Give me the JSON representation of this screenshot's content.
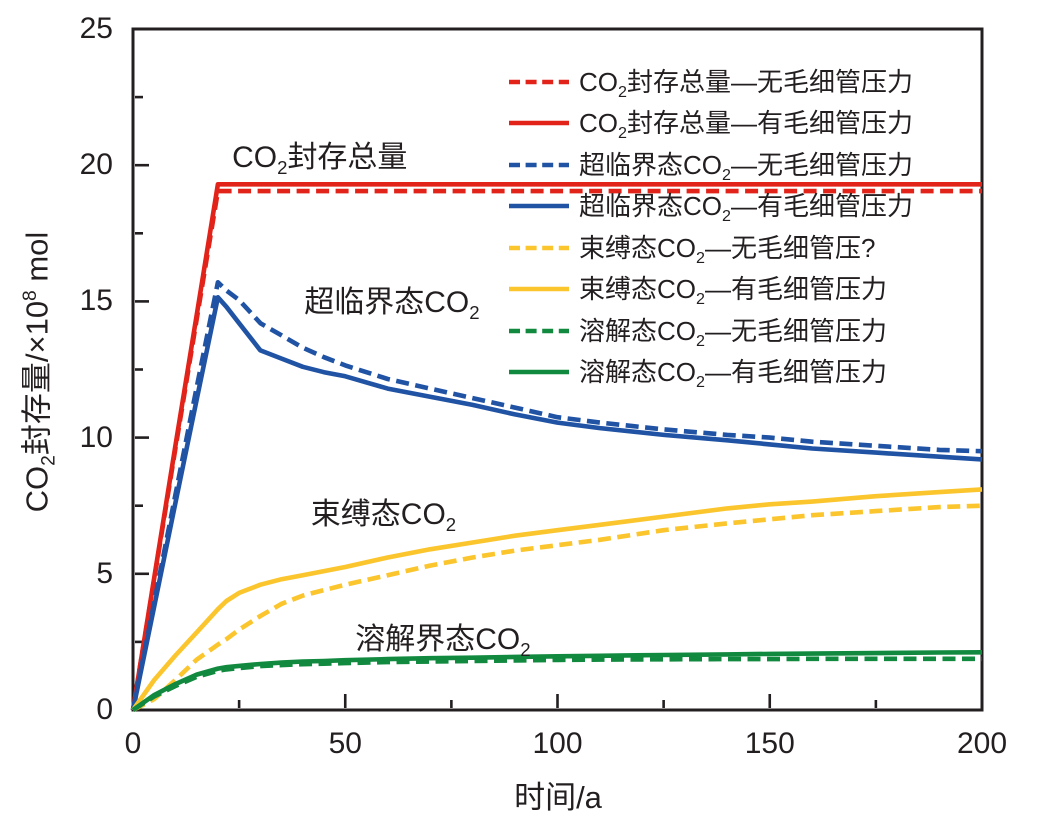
{
  "figure": {
    "background": "#ffffff",
    "text_color": "#231f20",
    "axis_color": "#231f20"
  },
  "chart_data": {
    "type": "line",
    "title": "",
    "xlabel": "时间/a",
    "ylabel": "CO2封存量/×10^8 mol",
    "ylabel_runs": [
      {
        "t": "CO"
      },
      {
        "sub": "2"
      },
      {
        "t": "封存量/×10"
      },
      {
        "sup": "8"
      },
      {
        "t": " mol"
      }
    ],
    "xlim": [
      0,
      200
    ],
    "ylim": [
      0,
      25
    ],
    "grid": false,
    "legend_position": "upper-right-inside",
    "x_major_ticks": [
      0,
      50,
      100,
      150,
      200
    ],
    "x_minor_ticks": [
      25,
      75,
      125,
      175
    ],
    "y_major_ticks": [
      0,
      5,
      10,
      15,
      20,
      25
    ],
    "y_minor_ticks": [
      2.5,
      7.5,
      12.5,
      17.5,
      22.5
    ],
    "x": [
      0,
      5,
      10,
      15,
      20,
      22,
      25,
      30,
      35,
      40,
      45,
      50,
      60,
      70,
      80,
      90,
      100,
      110,
      125,
      140,
      150,
      160,
      175,
      190,
      200
    ],
    "series": [
      {
        "name": "CO2封存总量—无毛细管压力",
        "name_runs": [
          {
            "t": "CO"
          },
          {
            "sub": "2"
          },
          {
            "t": "封存总量—无毛细管压力"
          }
        ],
        "color": "#e2231a",
        "style": "dashed",
        "values": [
          0,
          4.8,
          9.6,
          14.35,
          19.05,
          19.05,
          19.05,
          19.05,
          19.05,
          19.05,
          19.05,
          19.05,
          19.05,
          19.05,
          19.05,
          19.05,
          19.05,
          19.05,
          19.05,
          19.05,
          19.05,
          19.05,
          19.05,
          19.05,
          19.05
        ]
      },
      {
        "name": "CO2封存总量—有毛细管压力",
        "name_runs": [
          {
            "t": "CO"
          },
          {
            "sub": "2"
          },
          {
            "t": "封存总量—有毛细管压力"
          }
        ],
        "color": "#e2231a",
        "style": "solid",
        "values": [
          0,
          4.85,
          9.7,
          14.5,
          19.3,
          19.3,
          19.3,
          19.3,
          19.3,
          19.3,
          19.3,
          19.3,
          19.3,
          19.3,
          19.3,
          19.3,
          19.3,
          19.3,
          19.3,
          19.3,
          19.3,
          19.3,
          19.3,
          19.3,
          19.3
        ]
      },
      {
        "name": "超临界态CO2—无毛细管压力",
        "name_runs": [
          {
            "t": "超临界态CO"
          },
          {
            "sub": "2"
          },
          {
            "t": "—无毛细管压力"
          }
        ],
        "color": "#2053a4",
        "style": "dashed",
        "values": [
          0,
          3.95,
          7.9,
          11.85,
          15.7,
          15.4,
          15.05,
          14.2,
          13.75,
          13.3,
          12.95,
          12.65,
          12.15,
          11.8,
          11.45,
          11.1,
          10.75,
          10.55,
          10.3,
          10.1,
          10.0,
          9.85,
          9.7,
          9.55,
          9.5
        ]
      },
      {
        "name": "超临界态CO2—有毛细管压力",
        "name_runs": [
          {
            "t": "超临界态CO"
          },
          {
            "sub": "2"
          },
          {
            "t": "—有毛细管压力"
          }
        ],
        "color": "#2053a4",
        "style": "solid",
        "values": [
          0,
          3.8,
          7.6,
          11.4,
          15.15,
          14.8,
          14.2,
          13.2,
          12.9,
          12.6,
          12.4,
          12.25,
          11.8,
          11.5,
          11.2,
          10.85,
          10.55,
          10.35,
          10.1,
          9.9,
          9.75,
          9.6,
          9.45,
          9.3,
          9.2
        ]
      },
      {
        "name": "束缚态CO2—无毛细管压?",
        "name_runs": [
          {
            "t": "束缚态CO"
          },
          {
            "sub": "2"
          },
          {
            "t": "—无毛细管压?"
          }
        ],
        "color": "#fbc52d",
        "style": "dashed",
        "values": [
          0,
          0.4,
          1.1,
          1.85,
          2.4,
          2.6,
          2.95,
          3.45,
          3.9,
          4.2,
          4.4,
          4.6,
          4.95,
          5.3,
          5.6,
          5.85,
          6.05,
          6.25,
          6.6,
          6.85,
          7.0,
          7.15,
          7.3,
          7.45,
          7.5
        ]
      },
      {
        "name": "束缚态CO2—有毛细管压力",
        "name_runs": [
          {
            "t": "束缚态CO"
          },
          {
            "sub": "2"
          },
          {
            "t": "—有毛细管压力"
          }
        ],
        "color": "#fbc52d",
        "style": "solid",
        "values": [
          0,
          1.1,
          2.0,
          2.85,
          3.7,
          4.0,
          4.3,
          4.6,
          4.8,
          4.95,
          5.1,
          5.25,
          5.6,
          5.9,
          6.15,
          6.4,
          6.6,
          6.8,
          7.1,
          7.4,
          7.55,
          7.65,
          7.85,
          8.0,
          8.1
        ]
      },
      {
        "name": "溶解态CO2—无毛细管压力",
        "name_runs": [
          {
            "t": "溶解态CO"
          },
          {
            "sub": "2"
          },
          {
            "t": "—无毛细管压力"
          }
        ],
        "color": "#11893f",
        "style": "dashed",
        "values": [
          0,
          0.5,
          0.88,
          1.22,
          1.44,
          1.49,
          1.54,
          1.61,
          1.65,
          1.68,
          1.7,
          1.72,
          1.76,
          1.78,
          1.8,
          1.82,
          1.84,
          1.85,
          1.86,
          1.87,
          1.87,
          1.88,
          1.88,
          1.88,
          1.88
        ]
      },
      {
        "name": "溶解态CO2—有毛细管压力",
        "name_runs": [
          {
            "t": "溶解态CO"
          },
          {
            "sub": "2"
          },
          {
            "t": "—有毛细管压力"
          }
        ],
        "color": "#11893f",
        "style": "solid",
        "values": [
          0,
          0.55,
          0.95,
          1.3,
          1.52,
          1.57,
          1.62,
          1.69,
          1.74,
          1.78,
          1.8,
          1.83,
          1.87,
          1.9,
          1.92,
          1.95,
          1.97,
          1.99,
          2.02,
          2.04,
          2.06,
          2.07,
          2.09,
          2.11,
          2.12
        ]
      }
    ],
    "annotations": [
      {
        "name": "CO2封存总量",
        "runs": [
          {
            "t": "CO"
          },
          {
            "sub": "2"
          },
          {
            "t": "封存总量"
          }
        ],
        "x": 44,
        "y": 20.4
      },
      {
        "name": "超临界态CO2",
        "runs": [
          {
            "t": "超临界态CO"
          },
          {
            "sub": "2"
          }
        ],
        "x": 61,
        "y": 15.1
      },
      {
        "name": "束缚态CO2",
        "runs": [
          {
            "t": "束缚态CO"
          },
          {
            "sub": "2"
          }
        ],
        "x": 59,
        "y": 7.3
      },
      {
        "name": "溶解界态CO2",
        "runs": [
          {
            "t": "溶解界态CO"
          },
          {
            "sub": "2"
          }
        ],
        "x": 73,
        "y": 2.7
      }
    ]
  }
}
